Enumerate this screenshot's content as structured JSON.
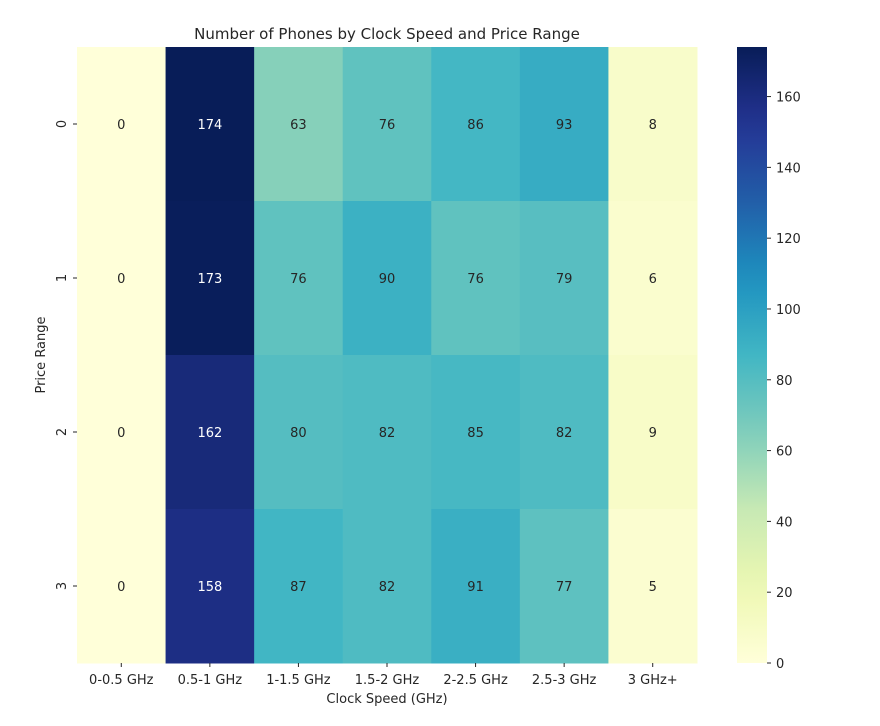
{
  "chart_data": {
    "type": "heatmap",
    "title": "Number of Phones by Clock Speed and Price Range",
    "xlabel": "Clock Speed (GHz)",
    "ylabel": "Price Range",
    "x_categories": [
      "0-0.5 GHz",
      "0.5-1 GHz",
      "1-1.5 GHz",
      "1.5-2 GHz",
      "2-2.5 GHz",
      "2.5-3 GHz",
      "3 GHz+"
    ],
    "y_categories": [
      "0",
      "1",
      "2",
      "3"
    ],
    "values": [
      [
        0,
        174,
        63,
        76,
        86,
        93,
        8
      ],
      [
        0,
        173,
        76,
        90,
        76,
        79,
        6
      ],
      [
        0,
        162,
        80,
        82,
        85,
        82,
        9
      ],
      [
        0,
        158,
        87,
        82,
        91,
        77,
        5
      ]
    ],
    "colormap": "YlGnBu",
    "value_range": [
      0,
      174
    ],
    "colorbar_ticks": [
      0,
      20,
      40,
      60,
      80,
      100,
      120,
      140,
      160
    ],
    "annotations": true
  }
}
